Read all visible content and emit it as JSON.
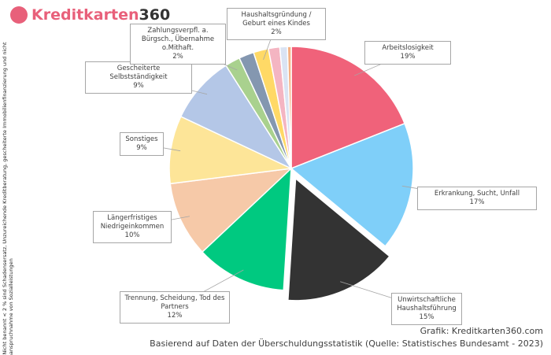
{
  "logo_parts": [
    "Kreditkarten",
    "360"
  ],
  "footnote": "* Nicht benannt < 2 % sind Schadensersatz, Unzureichende Kreditberatung, gescheiterte Immobilienfinanzierung und nicht inanspruchnahme von Sozialleistungen",
  "credit": "Grafik: Kreditkarten360.com",
  "source": "Basierend auf Daten der Überschuldungsstatistik (Quelle: Statistisches Bundesamt - 2023)",
  "chart_data": {
    "type": "pie",
    "categories": [
      "Arbeitslosigkeit",
      "Erkrankung, Sucht, Unfall",
      "Unwirtschaftliche Haushaltsführung",
      "Trennung, Scheidung, Tod des Partners",
      "Längerfristiges Niedrigeinkommen",
      "Sonstiges",
      "Gescheiterte Selbstständigkeit",
      "Zahlungsverpfl. a. Bürgsch., Übernahme o.Mithaft.",
      null,
      "Haushaltsgründung / Geburt eines Kindes",
      null,
      null,
      null
    ],
    "values": [
      19,
      17,
      15,
      12,
      10,
      9,
      9,
      2,
      2,
      2,
      1.5,
      1,
      0.5
    ],
    "value_labels": [
      "19%",
      "17%",
      "15%",
      "12%",
      "10%",
      "9%",
      "9%",
      "2%",
      null,
      "2%",
      null,
      null,
      null
    ],
    "colors": [
      "#f0627a",
      "#7fcff9",
      "#333333",
      "#00c980",
      "#f6c9a8",
      "#fde598",
      "#b4c7e7",
      "#a9d18e",
      "#8497b0",
      "#ffd966",
      "#f4b5c2",
      "#dae3f3",
      "#f4b183"
    ]
  }
}
